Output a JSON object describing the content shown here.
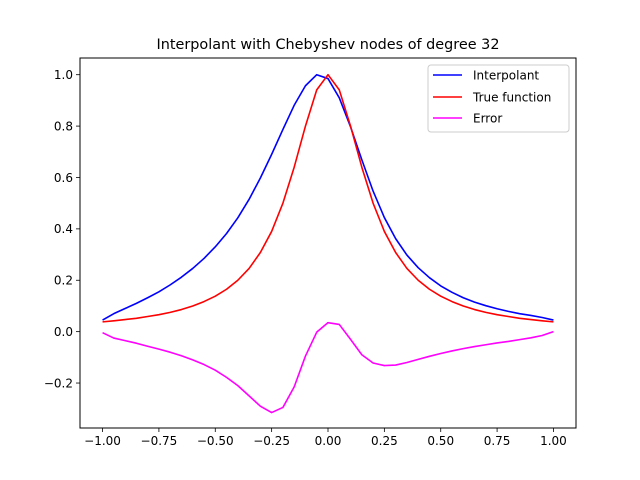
{
  "chart_data": {
    "type": "line",
    "title": "Interpolant with Chebyshev nodes of degree 32",
    "xlabel": "",
    "ylabel": "",
    "xlim": [
      -1.1,
      1.1
    ],
    "ylim": [
      -0.375,
      1.065
    ],
    "grid": false,
    "legend_position": "top-right",
    "x_ticks": [
      {
        "value": -1.0,
        "label": "−1.00"
      },
      {
        "value": -0.75,
        "label": "−0.75"
      },
      {
        "value": -0.5,
        "label": "−0.50"
      },
      {
        "value": -0.25,
        "label": "−0.25"
      },
      {
        "value": 0.0,
        "label": "0.00"
      },
      {
        "value": 0.25,
        "label": "0.25"
      },
      {
        "value": 0.5,
        "label": "0.50"
      },
      {
        "value": 0.75,
        "label": "0.75"
      },
      {
        "value": 1.0,
        "label": "1.00"
      }
    ],
    "y_ticks": [
      {
        "value": -0.2,
        "label": "−0.2"
      },
      {
        "value": 0.0,
        "label": "0.0"
      },
      {
        "value": 0.2,
        "label": "0.2"
      },
      {
        "value": 0.4,
        "label": "0.4"
      },
      {
        "value": 0.6,
        "label": "0.6"
      },
      {
        "value": 0.8,
        "label": "0.8"
      },
      {
        "value": 1.0,
        "label": "1.0"
      }
    ],
    "series": [
      {
        "name": "Interpolant",
        "color": "#0000ff",
        "x": [
          -1.0,
          -0.95,
          -0.9,
          -0.85,
          -0.8,
          -0.75,
          -0.7,
          -0.65,
          -0.6,
          -0.55,
          -0.5,
          -0.45,
          -0.4,
          -0.35,
          -0.3,
          -0.25,
          -0.2,
          -0.15,
          -0.1,
          -0.05,
          0.0,
          0.05,
          0.1,
          0.15,
          0.2,
          0.25,
          0.3,
          0.35,
          0.4,
          0.45,
          0.5,
          0.55,
          0.6,
          0.65,
          0.7,
          0.75,
          0.8,
          0.85,
          0.9,
          0.95,
          1.0
        ],
        "y": [
          0.045,
          0.07,
          0.09,
          0.11,
          0.132,
          0.155,
          0.182,
          0.212,
          0.246,
          0.285,
          0.33,
          0.382,
          0.443,
          0.515,
          0.598,
          0.69,
          0.787,
          0.881,
          0.957,
          1.0,
          0.985,
          0.91,
          0.797,
          0.669,
          0.547,
          0.444,
          0.362,
          0.298,
          0.249,
          0.21,
          0.178,
          0.153,
          0.132,
          0.115,
          0.101,
          0.089,
          0.079,
          0.07,
          0.063,
          0.055,
          0.045
        ]
      },
      {
        "name": "True function",
        "color": "#ff0000",
        "x": [
          -1.0,
          -0.95,
          -0.9,
          -0.85,
          -0.8,
          -0.75,
          -0.7,
          -0.65,
          -0.6,
          -0.55,
          -0.5,
          -0.45,
          -0.4,
          -0.35,
          -0.3,
          -0.25,
          -0.2,
          -0.15,
          -0.1,
          -0.05,
          0.0,
          0.05,
          0.1,
          0.15,
          0.2,
          0.25,
          0.3,
          0.35,
          0.4,
          0.45,
          0.5,
          0.55,
          0.6,
          0.65,
          0.7,
          0.75,
          0.8,
          0.85,
          0.9,
          0.95,
          1.0
        ],
        "y": [
          0.038,
          0.042,
          0.047,
          0.052,
          0.059,
          0.066,
          0.075,
          0.086,
          0.1,
          0.117,
          0.138,
          0.165,
          0.2,
          0.246,
          0.308,
          0.39,
          0.5,
          0.64,
          0.8,
          0.941,
          1.0,
          0.941,
          0.8,
          0.64,
          0.5,
          0.39,
          0.308,
          0.246,
          0.2,
          0.165,
          0.138,
          0.117,
          0.1,
          0.086,
          0.075,
          0.066,
          0.059,
          0.052,
          0.047,
          0.042,
          0.038
        ]
      },
      {
        "name": "Error",
        "color": "#ff00ff",
        "x": [
          -1.0,
          -0.95,
          -0.9,
          -0.85,
          -0.8,
          -0.75,
          -0.7,
          -0.65,
          -0.6,
          -0.55,
          -0.5,
          -0.45,
          -0.4,
          -0.35,
          -0.3,
          -0.25,
          -0.2,
          -0.15,
          -0.1,
          -0.05,
          0.0,
          0.05,
          0.1,
          0.15,
          0.2,
          0.25,
          0.3,
          0.35,
          0.4,
          0.45,
          0.5,
          0.55,
          0.6,
          0.65,
          0.7,
          0.75,
          0.8,
          0.85,
          0.9,
          0.95,
          1.0
        ],
        "y": [
          -0.004,
          -0.025,
          -0.035,
          -0.045,
          -0.057,
          -0.068,
          -0.08,
          -0.094,
          -0.11,
          -0.128,
          -0.15,
          -0.178,
          -0.21,
          -0.25,
          -0.29,
          -0.315,
          -0.295,
          -0.215,
          -0.095,
          -0.002,
          0.035,
          0.028,
          -0.03,
          -0.09,
          -0.122,
          -0.132,
          -0.13,
          -0.12,
          -0.108,
          -0.096,
          -0.085,
          -0.075,
          -0.066,
          -0.058,
          -0.051,
          -0.044,
          -0.038,
          -0.031,
          -0.024,
          -0.015,
          0.0
        ]
      }
    ]
  }
}
